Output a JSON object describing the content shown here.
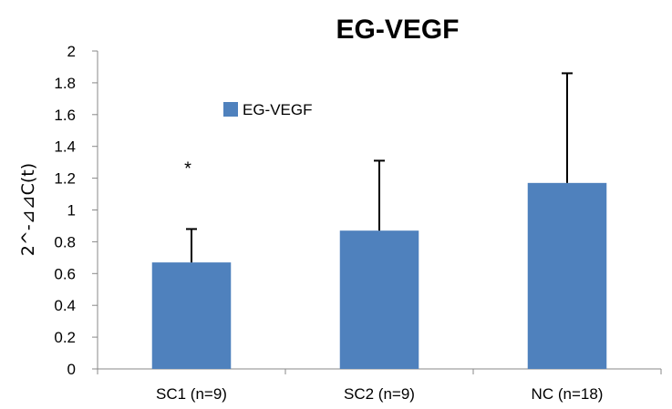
{
  "chart_data": {
    "type": "bar",
    "title": "EG-VEGF",
    "xlabel": "",
    "ylabel": "2^-⊿⊿C(t)",
    "ylim": [
      0,
      2
    ],
    "yticks": [
      "0",
      "0.2",
      "0.4",
      "0.6",
      "0.8",
      "1",
      "1.2",
      "1.4",
      "1.6",
      "1.8",
      "2"
    ],
    "categories": [
      "SC1 (n=9)",
      "SC2 (n=9)",
      "NC (n=18)"
    ],
    "series": [
      {
        "name": "EG-VEGF",
        "values": [
          0.67,
          0.87,
          1.17
        ],
        "error": [
          0.21,
          0.44,
          0.69
        ]
      }
    ],
    "annotations": [
      {
        "category": "SC1 (n=9)",
        "text": "*"
      }
    ],
    "colors": {
      "bar": "#4f81bd",
      "axis": "#888888",
      "error": "#000000"
    },
    "legend": {
      "position": "top-left",
      "entries": [
        "EG-VEGF"
      ]
    },
    "grid": false
  }
}
